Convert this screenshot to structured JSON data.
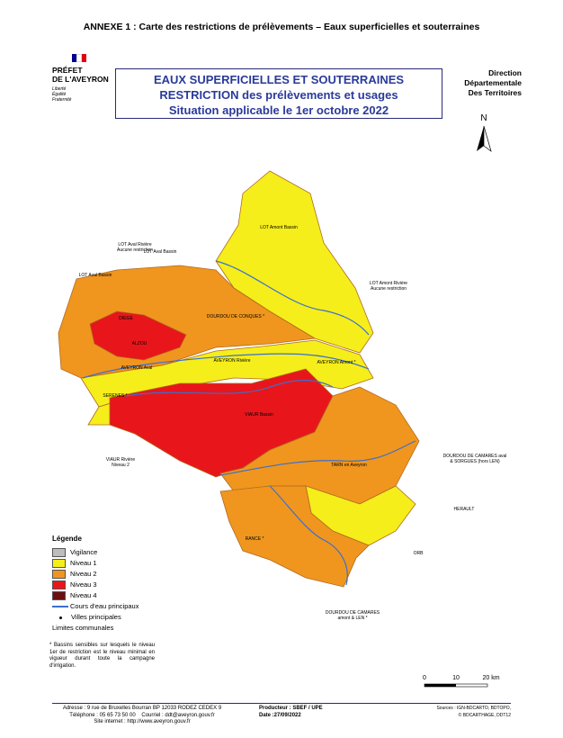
{
  "header": {
    "title": "ANNEXE 1 : Carte des restrictions de prélèvements – Eaux superficielles et souterraines"
  },
  "logo": {
    "lines": [
      "PRÉFET",
      "DE L'AVEYRON"
    ],
    "motto": [
      "Liberté",
      "Égalité",
      "Fraternité"
    ]
  },
  "title_box": {
    "lines": [
      "EAUX SUPERFICIELLES ET SOUTERRAINES",
      "RESTRICTION des prélèvements et usages",
      "Situation applicable le 1er octobre 2022"
    ]
  },
  "direction": {
    "lines": [
      "Direction",
      "Départementale",
      "Des Territoires"
    ]
  },
  "north": "N",
  "zones": [
    [
      "LOT Amont Bassin"
    ],
    [
      "LOT Aval Bassin"
    ],
    [
      "LOT Aval Rivière",
      "Aucune restriction"
    ],
    [
      "LOT Aval Bassin"
    ],
    [
      "LOT Amont Rivière",
      "Aucune restriction"
    ],
    [
      "DOURDOU DE CONQUES *"
    ],
    [
      "DIEGE"
    ],
    [
      "ALZOU"
    ],
    [
      "AVEYRON Aval"
    ],
    [
      "AVEYRON Rivière"
    ],
    [
      "AVEYRON Amont *"
    ],
    [
      "SERENES *"
    ],
    [
      "VIAUR Bassin"
    ],
    [
      "VIAUR Rivière",
      "Niveau 2"
    ],
    [
      "TARN en Aveyron"
    ],
    [
      "DOURDOU DE CAMARES aval",
      "& SORGUES (hors LEN)"
    ],
    [
      "HERAULT"
    ],
    [
      "ORB"
    ],
    [
      "RANCE *"
    ],
    [
      "DOURDOU DE CAMARES",
      "amont & LEN *"
    ]
  ],
  "legend": {
    "title": "Légende",
    "items": [
      "Vigilance",
      "Niveau 1",
      "Niveau 2",
      "Niveau 3",
      "Niveau 4",
      "Cours d'eau principaux",
      "Villes principales",
      "Limites communales"
    ]
  },
  "note": "* Bassins sensibles sur lesquels le niveau 1er de restriction est le niveau minimal en vigueur durant toute la campagne d'irrigation.",
  "scale": [
    "0",
    "10",
    "20 km"
  ],
  "footer": {
    "address": [
      "Adresse : 9 rue de Bruxelles Bourran BP 12033 RODEZ CEDEX 9",
      "Téléphone : 05 65 73 50 00",
      "Courriel : ddt@aveyron.gouv.fr",
      "Site internet : http://www.aveyron.gouv.fr"
    ],
    "producer": [
      "Producteur : SBEF / UPE",
      "Date :27/09/2022"
    ],
    "sources": [
      "Sources : IGN-BDCARTO, BDTOPO,",
      "© BDCARTHAGE, DDT12"
    ]
  }
}
